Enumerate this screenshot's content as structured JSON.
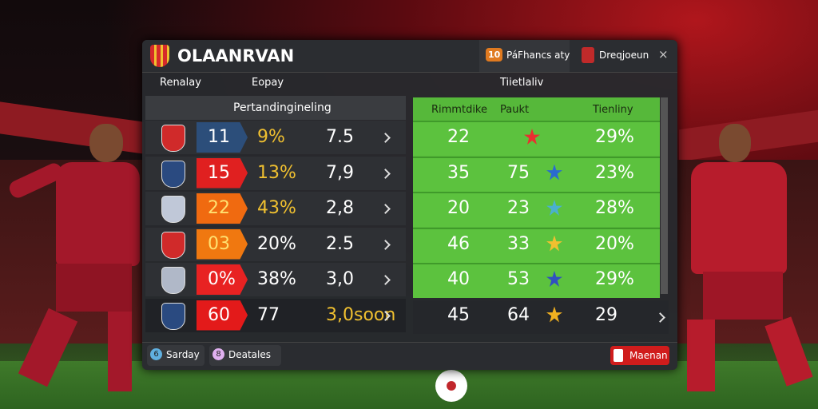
{
  "header": {
    "title": "OLAANRVAN",
    "tabs": [
      {
        "icon": "10",
        "label": "PáFhancs aty"
      },
      {
        "label": "Dreqjoeun"
      }
    ],
    "close": "×"
  },
  "columns": {
    "left": "Renalay",
    "middle": "Eopay",
    "right": "Tiietlaliv"
  },
  "left_table": {
    "title": "Pertandingineling",
    "rows": [
      [
        "11",
        "9%",
        "7.5"
      ],
      [
        "15",
        "13%",
        "7,9"
      ],
      [
        "22",
        "43%",
        "2,8"
      ],
      [
        "03",
        "20%",
        "2.5"
      ],
      [
        "0%",
        "38%",
        "3,0"
      ],
      [
        "60",
        "77",
        "3,0soon"
      ]
    ]
  },
  "right_table": {
    "headers": [
      "Rimmtdike",
      "Paukt",
      "Tienliny"
    ],
    "rows": [
      {
        "a": "22",
        "c": "29%"
      },
      {
        "a": "35",
        "b": "75",
        "c": "23%"
      },
      {
        "a": "20",
        "b": "23",
        "c": "28%"
      },
      {
        "a": "46",
        "b": "33",
        "c": "20%"
      },
      {
        "a": "40",
        "b": "53",
        "c": "29%"
      },
      {
        "a": "45",
        "b": "64",
        "c": "29"
      }
    ]
  },
  "footer": {
    "buttons": [
      {
        "icon": "6",
        "label": "Sarday"
      },
      {
        "icon": "8",
        "label": "Deatales"
      }
    ],
    "action": "Maenan"
  }
}
